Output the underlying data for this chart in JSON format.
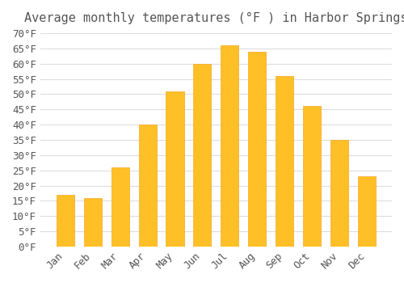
{
  "title": "Average monthly temperatures (°F ) in Harbor Springs",
  "months": [
    "Jan",
    "Feb",
    "Mar",
    "Apr",
    "May",
    "Jun",
    "Jul",
    "Aug",
    "Sep",
    "Oct",
    "Nov",
    "Dec"
  ],
  "temperatures": [
    17,
    16,
    26,
    40,
    51,
    60,
    66,
    64,
    56,
    46,
    35,
    23
  ],
  "bar_color": "#FFC027",
  "bar_edge_color": "#F5A623",
  "background_color": "#FFFFFF",
  "grid_color": "#DDDDDD",
  "text_color": "#555555",
  "ylim": [
    0,
    70
  ],
  "yticks": [
    0,
    5,
    10,
    15,
    20,
    25,
    30,
    35,
    40,
    45,
    50,
    55,
    60,
    65,
    70
  ],
  "ylabel_suffix": "°F",
  "title_fontsize": 11,
  "tick_fontsize": 9,
  "font_family": "monospace"
}
